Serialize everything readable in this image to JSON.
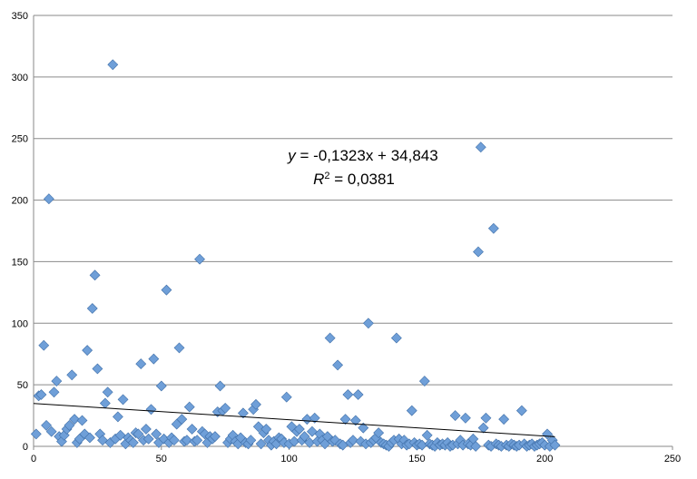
{
  "chart_data": {
    "type": "scatter",
    "title": "",
    "xlabel": "",
    "ylabel": "",
    "xlim": [
      0,
      250
    ],
    "ylim": [
      0,
      350
    ],
    "x_ticks": [
      "0",
      "50",
      "100",
      "150",
      "200",
      "250"
    ],
    "y_ticks": [
      "0",
      "50",
      "100",
      "150",
      "200",
      "250",
      "300",
      "350"
    ],
    "grid": {
      "horizontal": true,
      "vertical": false
    },
    "legend": "none",
    "marker": {
      "shape": "diamond",
      "color": "#6f9fd8",
      "edge_color": "#3f6fa8"
    },
    "trendline": {
      "type": "linear",
      "slope": -0.1323,
      "intercept": 34.843,
      "x_range": [
        0,
        204
      ],
      "color": "#000000",
      "equation_var": "y",
      "equation_rest": " = -0,1323x + 34,843",
      "r2_var": "R",
      "r2_sup": "2",
      "r2_rest": " = 0,0381"
    },
    "points": [
      [
        1,
        10
      ],
      [
        2,
        41
      ],
      [
        3,
        42
      ],
      [
        4,
        82
      ],
      [
        5,
        17
      ],
      [
        6,
        201
      ],
      [
        7,
        12
      ],
      [
        8,
        44
      ],
      [
        9,
        53
      ],
      [
        10,
        8
      ],
      [
        11,
        4
      ],
      [
        12,
        9
      ],
      [
        13,
        14
      ],
      [
        14,
        17
      ],
      [
        15,
        58
      ],
      [
        16,
        22
      ],
      [
        17,
        3
      ],
      [
        18,
        6
      ],
      [
        19,
        21
      ],
      [
        20,
        10
      ],
      [
        21,
        78
      ],
      [
        22,
        7
      ],
      [
        23,
        112
      ],
      [
        24,
        139
      ],
      [
        25,
        63
      ],
      [
        26,
        10
      ],
      [
        27,
        5
      ],
      [
        28,
        35
      ],
      [
        29,
        44
      ],
      [
        30,
        3
      ],
      [
        31,
        310
      ],
      [
        32,
        6
      ],
      [
        33,
        24
      ],
      [
        34,
        9
      ],
      [
        35,
        38
      ],
      [
        36,
        2
      ],
      [
        37,
        7
      ],
      [
        38,
        5
      ],
      [
        39,
        3
      ],
      [
        40,
        11
      ],
      [
        41,
        10
      ],
      [
        42,
        67
      ],
      [
        43,
        5
      ],
      [
        44,
        14
      ],
      [
        45,
        6
      ],
      [
        46,
        30
      ],
      [
        47,
        71
      ],
      [
        48,
        10
      ],
      [
        49,
        3
      ],
      [
        50,
        49
      ],
      [
        51,
        6
      ],
      [
        52,
        127
      ],
      [
        53,
        3
      ],
      [
        54,
        7
      ],
      [
        55,
        5
      ],
      [
        56,
        18
      ],
      [
        57,
        80
      ],
      [
        58,
        22
      ],
      [
        59,
        4
      ],
      [
        60,
        5
      ],
      [
        61,
        32
      ],
      [
        62,
        14
      ],
      [
        63,
        4
      ],
      [
        64,
        5
      ],
      [
        65,
        152
      ],
      [
        66,
        12
      ],
      [
        67,
        10
      ],
      [
        68,
        3
      ],
      [
        69,
        8
      ],
      [
        70,
        6
      ],
      [
        71,
        8
      ],
      [
        72,
        28
      ],
      [
        73,
        49
      ],
      [
        74,
        29
      ],
      [
        75,
        31
      ],
      [
        76,
        3
      ],
      [
        77,
        6
      ],
      [
        78,
        9
      ],
      [
        79,
        4
      ],
      [
        80,
        2
      ],
      [
        81,
        7
      ],
      [
        82,
        27
      ],
      [
        83,
        3
      ],
      [
        84,
        2
      ],
      [
        85,
        5
      ],
      [
        86,
        30
      ],
      [
        87,
        34
      ],
      [
        88,
        16
      ],
      [
        89,
        2
      ],
      [
        90,
        11
      ],
      [
        91,
        14
      ],
      [
        92,
        5
      ],
      [
        93,
        1
      ],
      [
        94,
        4
      ],
      [
        95,
        2
      ],
      [
        96,
        7
      ],
      [
        97,
        6
      ],
      [
        98,
        3
      ],
      [
        99,
        40
      ],
      [
        100,
        2
      ],
      [
        101,
        16
      ],
      [
        102,
        4
      ],
      [
        103,
        12
      ],
      [
        104,
        14
      ],
      [
        105,
        5
      ],
      [
        106,
        8
      ],
      [
        107,
        22
      ],
      [
        108,
        3
      ],
      [
        109,
        12
      ],
      [
        110,
        23
      ],
      [
        111,
        4
      ],
      [
        112,
        10
      ],
      [
        113,
        5
      ],
      [
        114,
        2
      ],
      [
        115,
        8
      ],
      [
        116,
        88
      ],
      [
        117,
        4
      ],
      [
        118,
        5
      ],
      [
        119,
        66
      ],
      [
        120,
        2
      ],
      [
        121,
        1
      ],
      [
        122,
        22
      ],
      [
        123,
        42
      ],
      [
        124,
        3
      ],
      [
        125,
        5
      ],
      [
        126,
        21
      ],
      [
        127,
        42
      ],
      [
        128,
        4
      ],
      [
        129,
        15
      ],
      [
        130,
        2
      ],
      [
        131,
        100
      ],
      [
        132,
        3
      ],
      [
        133,
        5
      ],
      [
        134,
        7
      ],
      [
        135,
        11
      ],
      [
        136,
        3
      ],
      [
        137,
        2
      ],
      [
        138,
        1
      ],
      [
        139,
        0
      ],
      [
        140,
        3
      ],
      [
        141,
        5
      ],
      [
        142,
        88
      ],
      [
        143,
        6
      ],
      [
        144,
        2
      ],
      [
        145,
        5
      ],
      [
        146,
        1
      ],
      [
        147,
        2
      ],
      [
        148,
        29
      ],
      [
        149,
        3
      ],
      [
        150,
        1
      ],
      [
        151,
        2
      ],
      [
        152,
        1
      ],
      [
        153,
        53
      ],
      [
        154,
        9
      ],
      [
        155,
        2
      ],
      [
        156,
        1
      ],
      [
        157,
        0
      ],
      [
        158,
        3
      ],
      [
        159,
        1
      ],
      [
        160,
        2
      ],
      [
        161,
        1
      ],
      [
        162,
        3
      ],
      [
        163,
        0
      ],
      [
        164,
        1
      ],
      [
        165,
        25
      ],
      [
        166,
        2
      ],
      [
        167,
        5
      ],
      [
        168,
        1
      ],
      [
        169,
        23
      ],
      [
        170,
        2
      ],
      [
        171,
        1
      ],
      [
        172,
        6
      ],
      [
        173,
        0
      ],
      [
        174,
        158
      ],
      [
        175,
        243
      ],
      [
        176,
        15
      ],
      [
        177,
        23
      ],
      [
        178,
        1
      ],
      [
        179,
        0
      ],
      [
        180,
        177
      ],
      [
        181,
        2
      ],
      [
        182,
        1
      ],
      [
        183,
        0
      ],
      [
        184,
        22
      ],
      [
        185,
        1
      ],
      [
        186,
        0
      ],
      [
        187,
        2
      ],
      [
        188,
        1
      ],
      [
        189,
        0
      ],
      [
        190,
        1
      ],
      [
        191,
        29
      ],
      [
        192,
        2
      ],
      [
        193,
        0
      ],
      [
        194,
        1
      ],
      [
        195,
        2
      ],
      [
        196,
        0
      ],
      [
        197,
        1
      ],
      [
        198,
        2
      ],
      [
        199,
        3
      ],
      [
        200,
        1
      ],
      [
        201,
        10
      ],
      [
        202,
        0
      ],
      [
        203,
        5
      ],
      [
        204,
        1
      ]
    ]
  }
}
